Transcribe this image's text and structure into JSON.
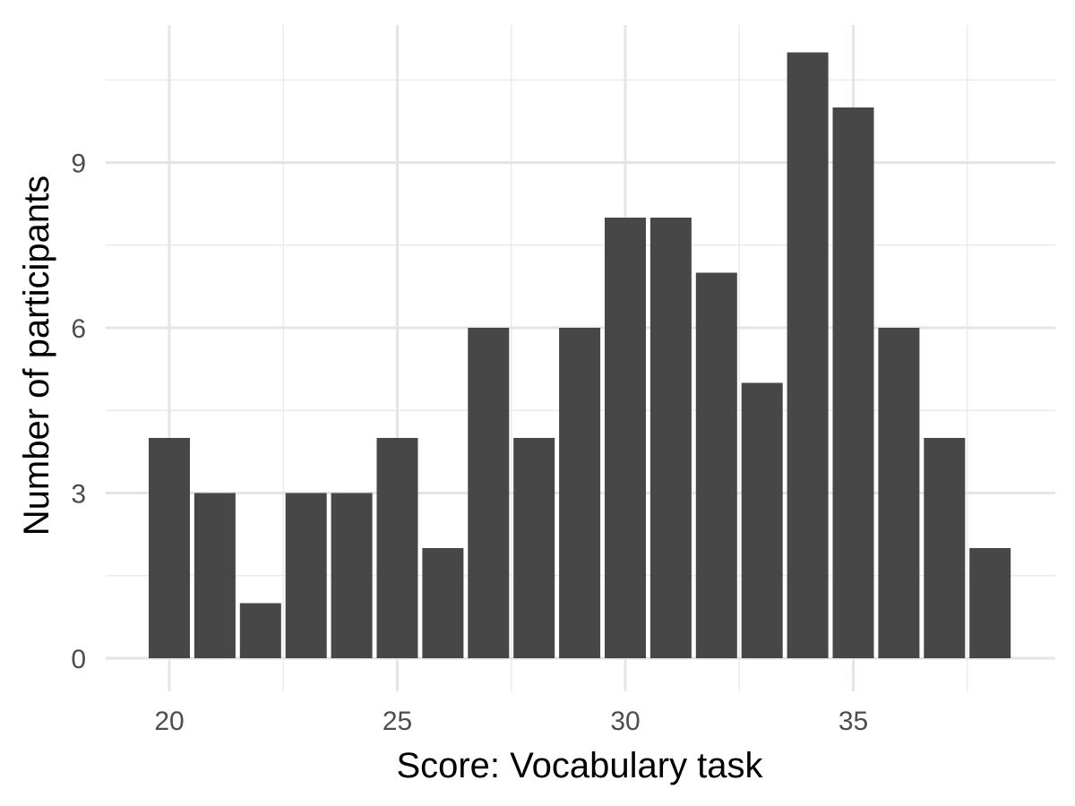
{
  "chart_data": {
    "type": "bar",
    "title": "",
    "xlabel": "Score: Vocabulary task",
    "ylabel": "Number of participants",
    "x": [
      20,
      21,
      22,
      23,
      24,
      25,
      26,
      27,
      28,
      29,
      30,
      31,
      32,
      33,
      34,
      35,
      36,
      37,
      38
    ],
    "values": [
      4,
      3,
      1,
      3,
      3,
      4,
      2,
      6,
      4,
      6,
      8,
      8,
      7,
      5,
      11,
      10,
      6,
      4,
      2
    ],
    "xlim": [
      19.5,
      38.5
    ],
    "ylim": [
      0,
      11
    ],
    "x_ticks": [
      20,
      25,
      30,
      35
    ],
    "y_ticks": [
      0,
      3,
      6,
      9
    ],
    "grid": true,
    "bar_color": "#474747",
    "grid_color": "#e5e5e5"
  },
  "axes": {
    "x_tick_labels": [
      "20",
      "25",
      "30",
      "35"
    ],
    "y_tick_labels": [
      "0",
      "3",
      "6",
      "9"
    ]
  }
}
